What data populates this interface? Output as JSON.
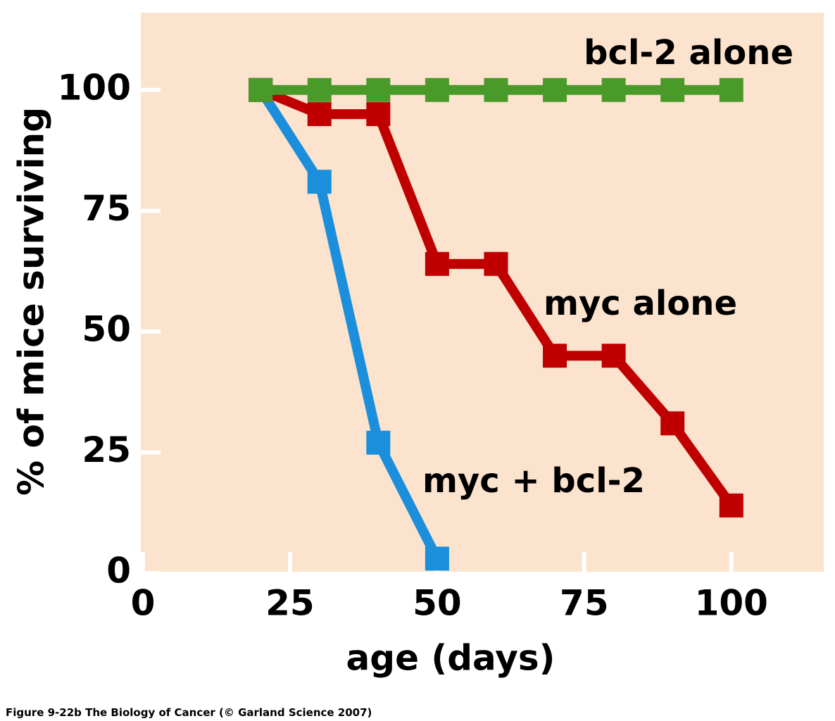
{
  "chart_data": {
    "type": "line",
    "x_label": "age (days)",
    "y_label": "% of mice surviving",
    "caption": "Figure 9-22b  The Biology of Cancer (© Garland Science 2007)",
    "x": [
      20,
      30,
      40,
      50,
      60,
      70,
      80,
      90,
      100
    ],
    "series": [
      {
        "name": "myc + bcl-2",
        "color": "#1b8fdc",
        "values": [
          100,
          81,
          27,
          3,
          null,
          null,
          null,
          null,
          null
        ]
      },
      {
        "name": "myc alone",
        "color": "#c00000",
        "values": [
          100,
          95,
          95,
          64,
          64,
          45,
          45,
          31,
          14
        ]
      },
      {
        "name": "bcl-2 alone",
        "color": "#4a9a2a",
        "values": [
          100,
          100,
          100,
          100,
          100,
          100,
          100,
          100,
          100
        ]
      }
    ],
    "xlim": [
      0,
      115.7
    ],
    "xticks": [
      0,
      25,
      50,
      75,
      100
    ],
    "ylim": [
      0,
      116
    ],
    "yticks": [
      0,
      25,
      50,
      75,
      100
    ]
  }
}
